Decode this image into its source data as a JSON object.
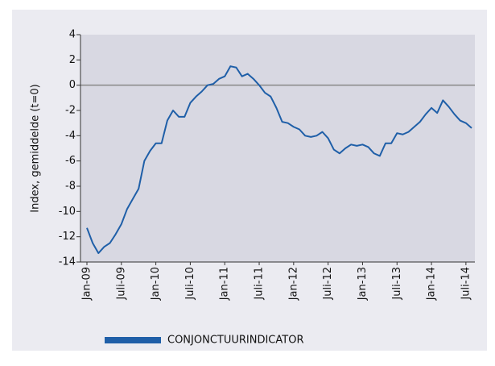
{
  "chart_data": {
    "type": "line",
    "y_label": "Index, gemiddelde (t=0)",
    "categories": [
      "Jan-09",
      null,
      null,
      null,
      null,
      null,
      "Juli-09",
      null,
      null,
      null,
      null,
      null,
      "Jan-10",
      null,
      null,
      null,
      null,
      null,
      "Juli-10",
      null,
      null,
      null,
      null,
      null,
      "Jan-11",
      null,
      null,
      null,
      null,
      null,
      "Juli-11",
      null,
      null,
      null,
      null,
      null,
      "Jan-12",
      null,
      null,
      null,
      null,
      null,
      "Juli-12",
      null,
      null,
      null,
      null,
      null,
      "Jan-13",
      null,
      null,
      null,
      null,
      null,
      "Juli-13",
      null,
      null,
      null,
      null,
      null,
      "Jan-14",
      null,
      null,
      null,
      null,
      null,
      "Juli-14",
      null
    ],
    "series": [
      {
        "name": "CONJONCTUURINDICATOR",
        "color": "#1f5fa8",
        "values": [
          -11.3,
          -12.5,
          -13.3,
          -12.8,
          -12.5,
          -11.8,
          -11,
          -9.8,
          -9,
          -8.2,
          -6,
          -5.2,
          -4.6,
          -4.6,
          -2.8,
          -2,
          -2.5,
          -2.5,
          -1.4,
          -0.9,
          -0.5,
          0,
          0.1,
          0.5,
          0.7,
          1.5,
          1.4,
          0.7,
          0.9,
          0.5,
          0,
          -0.6,
          -0.9,
          -1.8,
          -2.9,
          -3,
          -3.3,
          -3.5,
          -4,
          -4.1,
          -4,
          -3.7,
          -4.2,
          -5.1,
          -5.4,
          -5,
          -4.7,
          -4.8,
          -4.7,
          -4.9,
          -5.4,
          -5.6,
          -4.6,
          -4.6,
          -3.8,
          -3.9,
          -3.7,
          -3.3,
          -2.9,
          -2.3,
          -1.8,
          -2.2,
          -1.2,
          -1.7,
          -2.3,
          -2.8,
          -3,
          -3.4
        ]
      }
    ],
    "ylim": [
      -14,
      4
    ],
    "yticks": [
      -14,
      -12,
      -10,
      -8,
      -6,
      -4,
      -2,
      0,
      2,
      4
    ],
    "zero_line": true,
    "legend": "bottom"
  }
}
